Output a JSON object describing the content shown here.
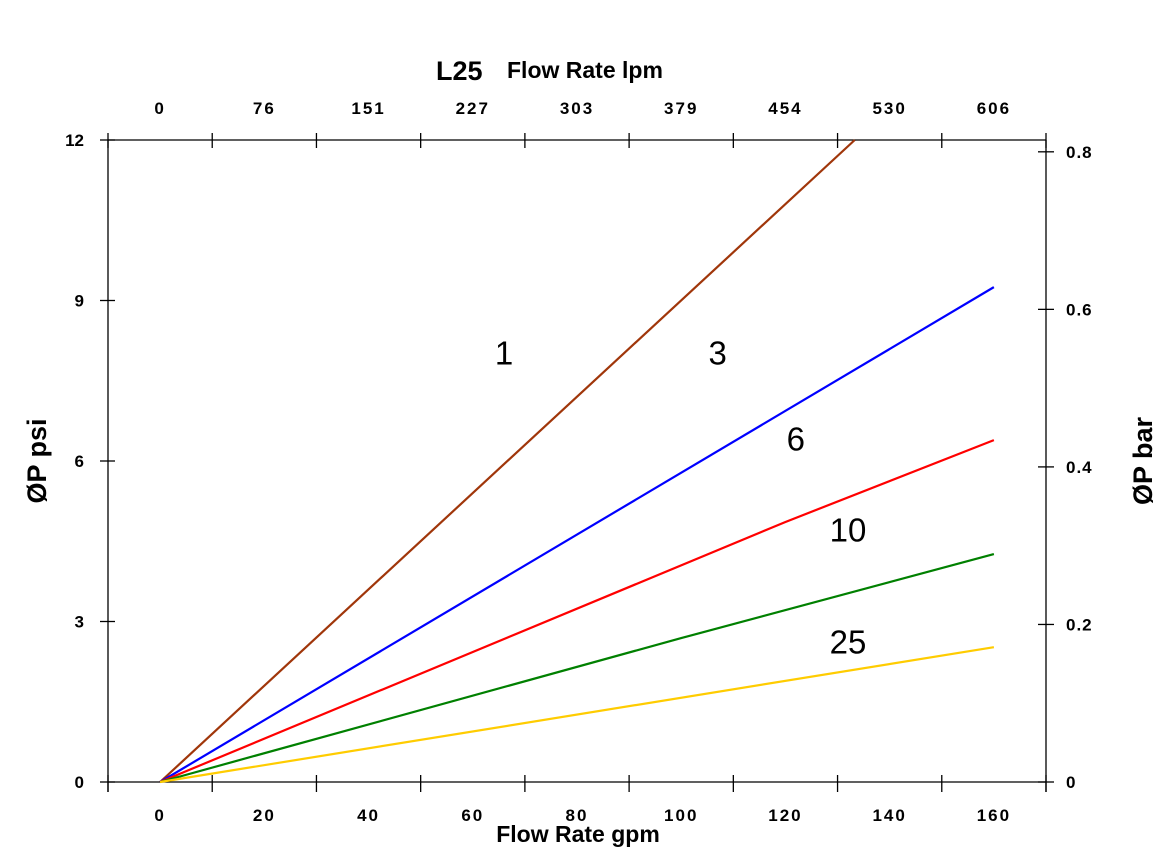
{
  "chart_data": {
    "type": "line",
    "title": "L25",
    "xlabel": "Flow Rate gpm",
    "ylabel": "ØP psi",
    "x2label": "Flow Rate lpm",
    "y2label": "ØP bar",
    "xlim": [
      -10,
      170
    ],
    "ylim": [
      0,
      12
    ],
    "y2lim": [
      0,
      0.815
    ],
    "xticks": [
      0,
      20,
      40,
      60,
      80,
      100,
      120,
      140,
      160
    ],
    "yticks": [
      0,
      3,
      6,
      9,
      12
    ],
    "x2ticks": [
      "0",
      "76",
      "151",
      "227",
      "303",
      "379",
      "454",
      "530",
      "606"
    ],
    "y2ticks": [
      "0",
      "0.2",
      "0.4",
      "0.6",
      "0.8"
    ],
    "grid": false,
    "series": [
      {
        "name": "1",
        "color": "#a0360a",
        "points": [
          [
            0,
            0
          ],
          [
            133.3,
            12
          ]
        ],
        "label_at": [
          66,
          7.8
        ]
      },
      {
        "name": "3",
        "color": "#0000ff",
        "points": [
          [
            0,
            0
          ],
          [
            160,
            9.25
          ]
        ],
        "label_at": [
          107,
          7.8
        ]
      },
      {
        "name": "6",
        "color": "#ff0000",
        "points": [
          [
            0,
            0
          ],
          [
            120,
            4.86
          ],
          [
            160,
            6.39
          ]
        ],
        "label_at": [
          122,
          6.2
        ]
      },
      {
        "name": "10",
        "color": "#008000",
        "points": [
          [
            0,
            0
          ],
          [
            100,
            2.69
          ],
          [
            160,
            4.26
          ]
        ],
        "label_at": [
          132,
          4.5
        ]
      },
      {
        "name": "25",
        "color": "#ffcc00",
        "points": [
          [
            0,
            0
          ],
          [
            160,
            2.52
          ]
        ],
        "label_at": [
          132,
          2.4
        ]
      }
    ]
  }
}
